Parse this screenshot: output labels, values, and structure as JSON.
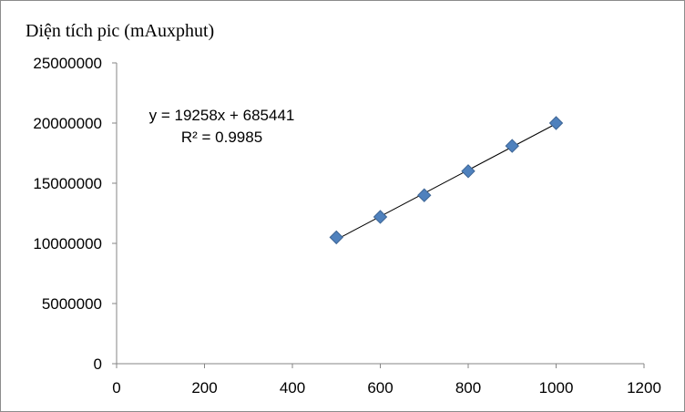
{
  "chart_data": {
    "type": "scatter",
    "ylabel": "Diện tích pic (mAuxphut)",
    "xlabel": "",
    "x": [
      500,
      600,
      700,
      800,
      900,
      1000
    ],
    "y": [
      10500000,
      12200000,
      14000000,
      16000000,
      18100000,
      20000000
    ],
    "xlim": [
      0,
      1200
    ],
    "ylim": [
      0,
      25000000
    ],
    "xticks": [
      "0",
      "200",
      "400",
      "600",
      "800",
      "1000",
      "1200"
    ],
    "yticks": [
      "0",
      "5000000",
      "10000000",
      "15000000",
      "20000000",
      "25000000"
    ],
    "trendline": {
      "type": "linear",
      "slope": 19258,
      "intercept": 685441,
      "equation_text": "y = 19258x + 685441",
      "r2_text": "R² = 0.9985"
    },
    "marker": "diamond",
    "marker_color": "#4f81bd",
    "grid": false,
    "legend": "none"
  }
}
